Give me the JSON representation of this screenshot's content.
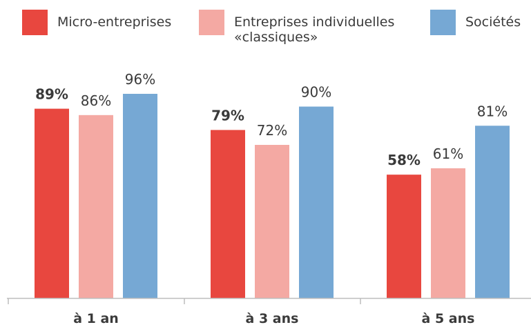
{
  "chart_data": {
    "type": "bar",
    "categories": [
      "à 1 an",
      "à 3 ans",
      "à 5 ans"
    ],
    "series": [
      {
        "name": "Micro-entreprises",
        "color": "#e8473f",
        "values": [
          89,
          79,
          58
        ],
        "labels": [
          "89%",
          "79%",
          "58%"
        ],
        "bold_labels": true
      },
      {
        "name": "Entreprises individuelles\n«classiques»",
        "color": "#f4a9a3",
        "values": [
          86,
          72,
          61
        ],
        "labels": [
          "86%",
          "72%",
          "61%"
        ],
        "bold_labels": false
      },
      {
        "name": "Sociétés",
        "color": "#76a8d4",
        "values": [
          96,
          90,
          81
        ],
        "labels": [
          "96%",
          "90%",
          "81%"
        ],
        "bold_labels": false
      }
    ],
    "ylim": [
      0,
      100
    ],
    "grid": false,
    "legend_position": "top"
  }
}
